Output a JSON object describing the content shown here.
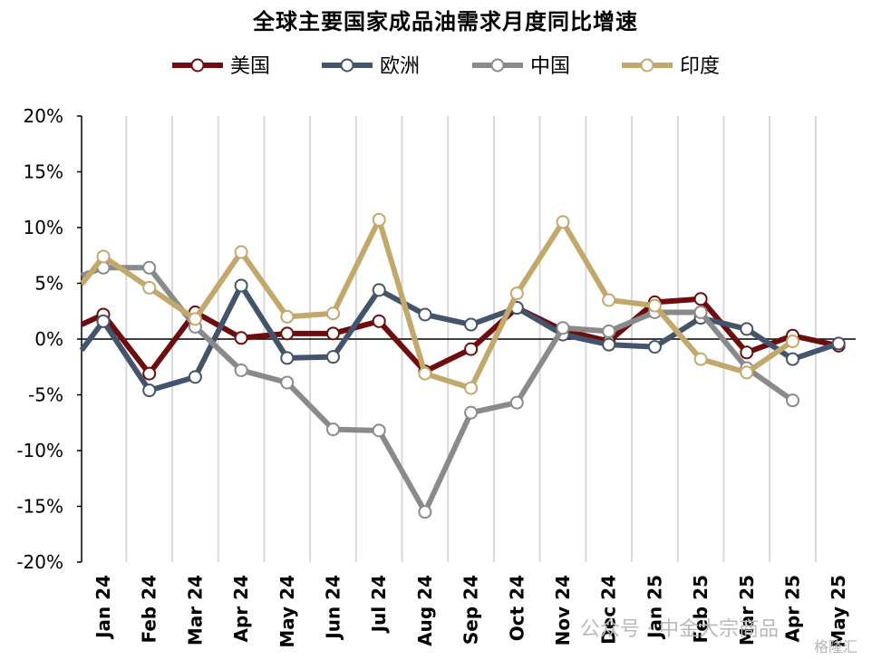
{
  "chart_data": {
    "type": "line",
    "title": "全球主要国家成品油需求月度同比增速",
    "categories": [
      "Jan 24",
      "Feb 24",
      "Mar 24",
      "Apr 24",
      "May 24",
      "Jun 24",
      "Jul 24",
      "Aug 24",
      "Sep 24",
      "Oct 24",
      "Nov 24",
      "Dec 24",
      "Jan 25",
      "Feb 25",
      "Mar 25",
      "Apr 25",
      "May 25"
    ],
    "ylim": [
      -20,
      20
    ],
    "yticks": [
      20,
      15,
      10,
      5,
      0,
      -5,
      -10,
      -15,
      -20
    ],
    "ytick_labels": [
      "20%",
      "15%",
      "10%",
      "5%",
      "0%",
      "-5%",
      "-10%",
      "-15%",
      "-20%"
    ],
    "legend_position": "top-center",
    "grid": "vertical",
    "series": [
      {
        "name": "美国",
        "color": "#6e0d0d",
        "lead_in": 1.3,
        "values": [
          2.2,
          -3.1,
          2.4,
          0.1,
          0.5,
          0.5,
          1.6,
          -2.9,
          -0.9,
          2.8,
          0.8,
          -0.2,
          3.3,
          3.6,
          -1.2,
          0.3,
          -0.6
        ]
      },
      {
        "name": "欧洲",
        "color": "#44546a",
        "lead_in": -1.0,
        "values": [
          1.6,
          -4.6,
          -3.4,
          4.8,
          -1.7,
          -1.6,
          4.4,
          2.2,
          1.3,
          2.8,
          0.4,
          -0.5,
          -0.7,
          1.9,
          0.9,
          -1.8,
          -0.4
        ]
      },
      {
        "name": "中国",
        "color": "#8a8a8a",
        "lead_in": 5.7,
        "values": [
          6.4,
          6.4,
          1.1,
          -2.8,
          -3.9,
          -8.1,
          -8.2,
          -15.5,
          -6.6,
          -5.7,
          1.0,
          0.7,
          2.4,
          2.4,
          -2.6,
          -5.5,
          null
        ]
      },
      {
        "name": "印度",
        "color": "#c3a86b",
        "lead_in": 4.9,
        "values": [
          7.4,
          4.6,
          1.8,
          7.8,
          2.0,
          2.3,
          10.7,
          -3.1,
          -4.4,
          4.1,
          10.5,
          3.5,
          3.0,
          -1.8,
          -3.0,
          -0.2,
          null
        ]
      }
    ]
  },
  "watermark": {
    "line1": "公众号 · 中金大宗商品",
    "line2": "格隆汇"
  }
}
